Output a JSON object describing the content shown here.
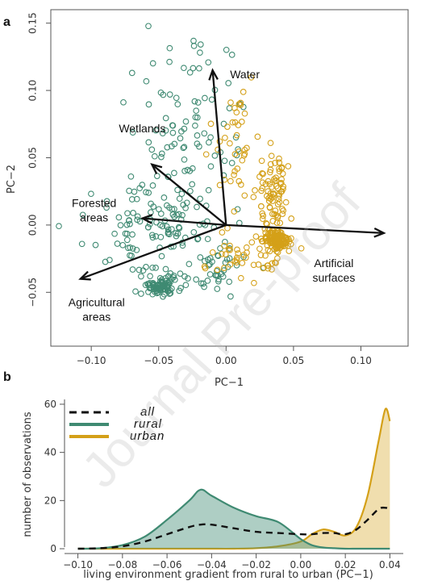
{
  "watermark": "Journal Pre-proof",
  "panel_a": {
    "label": "a",
    "xlabel": "PC−1",
    "ylabel": "PC−2",
    "xlim": [
      -0.13,
      0.135
    ],
    "ylim": [
      -0.09,
      0.16
    ],
    "xticks": [
      {
        "value": -0.1,
        "label": "−0.10"
      },
      {
        "value": -0.05,
        "label": "−0.05"
      },
      {
        "value": 0.0,
        "label": "0.00"
      },
      {
        "value": 0.05,
        "label": "0.05"
      },
      {
        "value": 0.1,
        "label": "0.10"
      }
    ],
    "yticks": [
      {
        "value": -0.05,
        "label": "−0.05"
      },
      {
        "value": 0.0,
        "label": "0.00"
      },
      {
        "value": 0.05,
        "label": "0.05"
      },
      {
        "value": 0.1,
        "label": "0.10"
      },
      {
        "value": 0.15,
        "label": "0.15"
      }
    ]
  },
  "panel_b": {
    "label": "b",
    "xlabel": "living environment gradient from rural to urban (PC−1)",
    "ylabel": "number of observations",
    "xlim": [
      -0.106,
      0.046
    ],
    "ylim": [
      -2,
      62
    ],
    "xticks": [
      {
        "value": -0.1,
        "label": "−0.10"
      },
      {
        "value": -0.08,
        "label": "−0.08"
      },
      {
        "value": -0.06,
        "label": "−0.06"
      },
      {
        "value": -0.04,
        "label": "−0.04"
      },
      {
        "value": -0.02,
        "label": "−0.02"
      },
      {
        "value": 0.0,
        "label": "0.00"
      },
      {
        "value": 0.02,
        "label": "0.02"
      },
      {
        "value": 0.04,
        "label": "0.04"
      }
    ],
    "yticks": [
      {
        "value": 0,
        "label": "0"
      },
      {
        "value": 20,
        "label": "20"
      },
      {
        "value": 40,
        "label": "40"
      },
      {
        "value": 60,
        "label": "60"
      }
    ],
    "legend": [
      {
        "name": "all",
        "color": "#111111",
        "style": "dashed"
      },
      {
        "name": "rural",
        "color": "#3f8a72",
        "style": "solid"
      },
      {
        "name": "urban",
        "color": "#d4a018",
        "style": "solid"
      }
    ]
  },
  "chart_data": [
    {
      "type": "scatter",
      "xlabel": "PC−1",
      "ylabel": "PC−2",
      "xlim": [
        -0.13,
        0.135
      ],
      "ylim": [
        -0.09,
        0.16
      ],
      "colors": {
        "rural": "#3f8a72",
        "urban": "#d4a018"
      },
      "series": [
        {
          "name": "rural",
          "clusters": [
            {
              "center": [
                -0.048,
                -0.045
              ],
              "spread": [
                0.008,
                0.004
              ],
              "count": 90
            },
            {
              "center": [
                -0.05,
                0.0
              ],
              "spread": [
                0.025,
                0.02
              ],
              "count": 110
            },
            {
              "center": [
                -0.03,
                0.06
              ],
              "spread": [
                0.022,
                0.025
              ],
              "count": 70
            },
            {
              "center": [
                -0.02,
                0.11
              ],
              "spread": [
                0.02,
                0.02
              ],
              "count": 25
            },
            {
              "center": [
                -0.01,
                -0.03
              ],
              "spread": [
                0.012,
                0.01
              ],
              "count": 35
            }
          ]
        },
        {
          "name": "urban",
          "clusters": [
            {
              "center": [
                0.038,
                -0.012
              ],
              "spread": [
                0.005,
                0.004
              ],
              "count": 130
            },
            {
              "center": [
                0.035,
                0.02
              ],
              "spread": [
                0.006,
                0.02
              ],
              "count": 80
            },
            {
              "center": [
                0.01,
                0.06
              ],
              "spread": [
                0.01,
                0.025
              ],
              "count": 45
            },
            {
              "center": [
                0.015,
                -0.025
              ],
              "spread": [
                0.015,
                0.008
              ],
              "count": 40
            }
          ]
        }
      ],
      "loadings": [
        {
          "name": "Water",
          "x": -0.01,
          "y": 0.115
        },
        {
          "name": "Wetlands",
          "x": -0.055,
          "y": 0.045
        },
        {
          "name": "Forested\nareas",
          "x": -0.062,
          "y": 0.005
        },
        {
          "name": "Agricultural\nareas",
          "x": -0.108,
          "y": -0.04
        },
        {
          "name": "Artificial\nsurfaces",
          "x": 0.117,
          "y": -0.006
        }
      ]
    },
    {
      "type": "area",
      "xlabel": "living environment gradient from rural to urban (PC−1)",
      "ylabel": "number of observations",
      "xlim": [
        -0.106,
        0.046
      ],
      "ylim": [
        -2,
        62
      ],
      "x": [
        -0.1,
        -0.09,
        -0.08,
        -0.07,
        -0.06,
        -0.05,
        -0.045,
        -0.04,
        -0.03,
        -0.02,
        -0.01,
        0.0,
        0.005,
        0.01,
        0.015,
        0.02,
        0.025,
        0.03,
        0.035,
        0.038,
        0.04
      ],
      "series": [
        {
          "name": "all",
          "values": [
            0,
            0.2,
            1.0,
            3.0,
            6.0,
            9.0,
            10.0,
            10.0,
            8.5,
            7.0,
            6.5,
            6.0,
            6.0,
            6.5,
            6.5,
            6.0,
            8.0,
            12.0,
            16.5,
            17.0,
            16.5
          ]
        },
        {
          "name": "rural",
          "values": [
            0,
            0.2,
            1.5,
            5.0,
            12.0,
            20.0,
            24.5,
            22.0,
            17.0,
            13.5,
            11.0,
            4.0,
            1.5,
            0.5,
            0.2,
            0,
            0,
            0,
            0,
            0,
            0
          ]
        },
        {
          "name": "urban",
          "values": [
            0,
            0,
            0,
            0,
            0,
            0,
            0,
            0,
            0,
            0.2,
            1.0,
            3.0,
            6.0,
            8.0,
            7.0,
            5.5,
            9.0,
            22.0,
            45.0,
            58.0,
            53.0
          ]
        }
      ]
    }
  ]
}
